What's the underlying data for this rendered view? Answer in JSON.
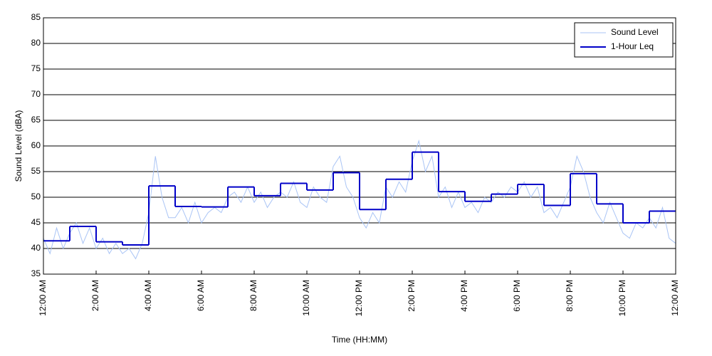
{
  "chart_data": {
    "type": "line",
    "xlabel": "Time (HH:MM)",
    "ylabel": "Sound Level (dBA)",
    "xlim": [
      0,
      24
    ],
    "ylim": [
      35,
      85
    ],
    "yticks": [
      35,
      40,
      45,
      50,
      55,
      60,
      65,
      70,
      75,
      80,
      85
    ],
    "xticks": [
      {
        "value": 0,
        "label": "12:00 AM"
      },
      {
        "value": 2,
        "label": "2:00 AM"
      },
      {
        "value": 4,
        "label": "4:00 AM"
      },
      {
        "value": 6,
        "label": "6:00 AM"
      },
      {
        "value": 8,
        "label": "8:00 AM"
      },
      {
        "value": 10,
        "label": "10:00 AM"
      },
      {
        "value": 12,
        "label": "12:00 PM"
      },
      {
        "value": 14,
        "label": "2:00 PM"
      },
      {
        "value": 16,
        "label": "4:00 PM"
      },
      {
        "value": 18,
        "label": "6:00 PM"
      },
      {
        "value": 20,
        "label": "8:00 PM"
      },
      {
        "value": 22,
        "label": "10:00 PM"
      },
      {
        "value": 24,
        "label": "12:00 AM"
      }
    ],
    "grid": true,
    "legend": "upper right",
    "series": [
      {
        "name": "Sound Level",
        "color": "#a9c4f5",
        "x": [
          0,
          0.25,
          0.5,
          0.75,
          1,
          1.25,
          1.5,
          1.75,
          2,
          2.25,
          2.5,
          2.75,
          3,
          3.25,
          3.5,
          3.75,
          4,
          4.25,
          4.5,
          4.75,
          5,
          5.25,
          5.5,
          5.75,
          6,
          6.25,
          6.5,
          6.75,
          7,
          7.25,
          7.5,
          7.75,
          8,
          8.25,
          8.5,
          8.75,
          9,
          9.25,
          9.5,
          9.75,
          10,
          10.25,
          10.5,
          10.75,
          11,
          11.25,
          11.5,
          11.75,
          12,
          12.25,
          12.5,
          12.75,
          13,
          13.25,
          13.5,
          13.75,
          14,
          14.25,
          14.5,
          14.75,
          15,
          15.25,
          15.5,
          15.75,
          16,
          16.25,
          16.5,
          16.75,
          17,
          17.25,
          17.5,
          17.75,
          18,
          18.25,
          18.5,
          18.75,
          19,
          19.25,
          19.5,
          19.75,
          20,
          20.25,
          20.5,
          20.75,
          21,
          21.25,
          21.5,
          21.75,
          22,
          22.25,
          22.5,
          22.75,
          23,
          23.25,
          23.5,
          23.75,
          24
        ],
        "values": [
          42,
          39,
          44,
          40,
          43,
          45,
          41,
          44,
          40,
          42,
          39,
          41,
          39,
          40,
          38,
          41,
          47,
          58,
          50,
          46,
          46,
          48,
          45,
          49,
          45,
          47,
          48,
          47,
          50,
          51,
          49,
          52,
          49,
          51,
          48,
          50,
          51,
          50,
          53,
          49,
          48,
          52,
          50,
          49,
          56,
          58,
          52,
          50,
          46,
          44,
          47,
          45,
          52,
          50,
          53,
          51,
          57,
          61,
          55,
          58,
          50,
          52,
          48,
          51,
          48,
          49,
          47,
          50,
          49,
          51,
          50,
          52,
          51,
          53,
          50,
          52,
          47,
          48,
          46,
          49,
          52,
          58,
          55,
          50,
          47,
          45,
          49,
          46,
          43,
          42,
          45,
          44,
          46,
          44,
          48,
          42,
          41
        ]
      },
      {
        "name": "1-Hour Leq",
        "color": "#0000c8",
        "step": true,
        "x": [
          0,
          1,
          2,
          3,
          4,
          5,
          6,
          7,
          8,
          9,
          10,
          11,
          12,
          13,
          14,
          15,
          16,
          17,
          18,
          19,
          20,
          21,
          22,
          23
        ],
        "values": [
          41.5,
          44.3,
          41.3,
          40.7,
          52.2,
          48.2,
          48.1,
          52.0,
          50.3,
          52.7,
          51.4,
          54.8,
          47.6,
          53.5,
          58.8,
          51.1,
          49.2,
          50.6,
          52.5,
          48.4,
          54.6,
          48.7,
          45.0,
          47.3
        ]
      }
    ]
  }
}
